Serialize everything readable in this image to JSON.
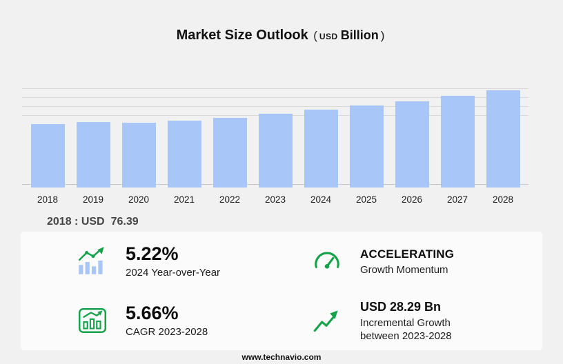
{
  "title": {
    "main": "Market Size Outlook",
    "open": "(",
    "unit_small": "USD",
    "unit_bold": "Billion",
    "close": ")"
  },
  "chart_data": {
    "type": "bar",
    "title": "Market Size Outlook (USD Billion)",
    "categories": [
      "2018",
      "2019",
      "2020",
      "2021",
      "2022",
      "2023",
      "2024",
      "2025",
      "2026",
      "2027",
      "2028"
    ],
    "values": [
      76.39,
      78.8,
      78.2,
      81.0,
      84.6,
      89.33,
      93.99,
      99.0,
      104.5,
      110.7,
      117.62
    ],
    "xlabel": "",
    "ylabel": "",
    "ylim": [
      0,
      125
    ],
    "grid": "horizontal-top-only",
    "legend": "none",
    "bar_color": "#a8c7f8",
    "baseline_note": "2018 : USD 76.39"
  },
  "annotation": {
    "label": "2018 : USD",
    "value": "76.39"
  },
  "stats": [
    {
      "icon": "yoy-bar-trend-icon",
      "value": "5.22%",
      "label": "2024 Year-over-Year"
    },
    {
      "icon": "speedometer-icon",
      "value": "ACCELERATING",
      "label": "Growth Momentum"
    },
    {
      "icon": "cagr-chart-icon",
      "value": "5.66%",
      "label": "CAGR 2023-2028"
    },
    {
      "icon": "incremental-growth-arrow-icon",
      "value": "USD 28.29 Bn",
      "label": "Incremental Growth between 2023-2028"
    }
  ],
  "footer": {
    "url": "www.technavio.com"
  },
  "colors": {
    "background": "#f1f1f1",
    "panel": "#fbfbfb",
    "bar": "#a8c7f8",
    "accent_green": "#16a24a",
    "text": "#111111"
  }
}
